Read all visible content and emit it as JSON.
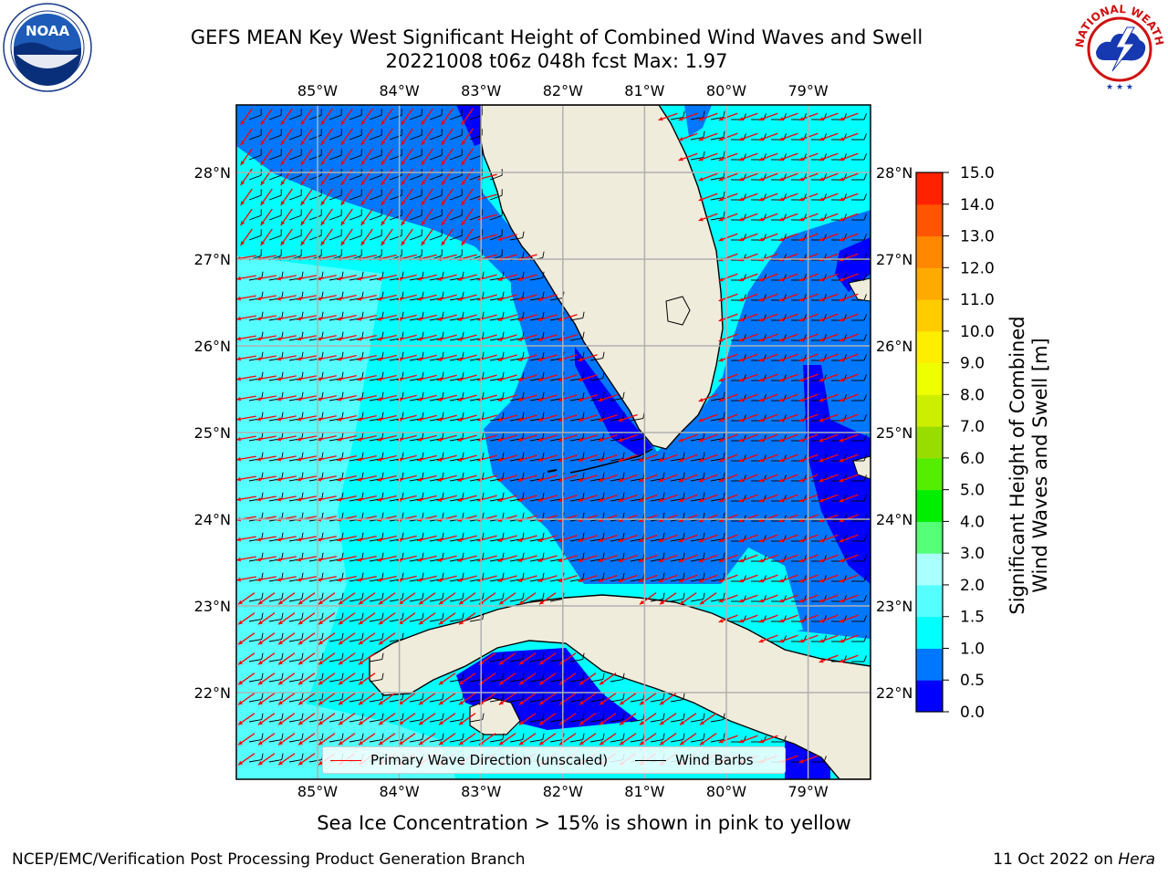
{
  "title": {
    "line1": "GEFS MEAN Key West Significant Height of Combined Wind Waves and Swell",
    "line2": "20221008 t06z 048h fcst   Max: 1.97"
  },
  "logos": {
    "left": {
      "icon": "noaa-logo",
      "text": "NOAA"
    },
    "right": {
      "icon": "nws-logo",
      "text": "NATIONAL WEATHER SERVICE"
    }
  },
  "map": {
    "lon_ticks": [
      "85°W",
      "84°W",
      "83°W",
      "82°W",
      "81°W",
      "80°W",
      "79°W"
    ],
    "lat_ticks": [
      "28°N",
      "27°N",
      "26°N",
      "25°N",
      "24°N",
      "23°N",
      "22°N"
    ],
    "lon_range": [
      -86.0,
      -78.3
    ],
    "lat_range": [
      21.0,
      28.75
    ],
    "land_color": "#efecdc",
    "gridlines": true
  },
  "legend": {
    "wave_label": "Primary Wave Direction (unscaled)",
    "wind_label": "Wind Barbs",
    "wave_color": "#ff0000",
    "wind_color": "#000000",
    "placement": "bottom-center"
  },
  "colorbar": {
    "label_line1": "Significant Height of Combined",
    "label_line2": "Wind Waves and Swell [m]",
    "ticks": [
      "15.0",
      "14.0",
      "13.0",
      "12.0",
      "11.0",
      "10.0",
      "9.0",
      "8.0",
      "7.0",
      "6.0",
      "5.0",
      "4.0",
      "3.0",
      "2.0",
      "1.5",
      "1.0",
      "0.5",
      "0.0"
    ],
    "colors_bottom_to_top": [
      "#0000ff",
      "#0077ff",
      "#00ffff",
      "#55ffff",
      "#aaffff",
      "#55ff77",
      "#00ee00",
      "#55ee00",
      "#99dd00",
      "#ccee00",
      "#eeff00",
      "#ffee00",
      "#ffcc00",
      "#ffaa00",
      "#ff8800",
      "#ff5500",
      "#ff2200"
    ]
  },
  "notes": {
    "ice": "Sea Ice Concentration > 15% is shown in pink to yellow",
    "footer_left": "NCEP/EMC/Verification Post Processing Product Generation Branch",
    "footer_right_date": "11 Oct 2022 on",
    "footer_right_host": "Hera"
  }
}
